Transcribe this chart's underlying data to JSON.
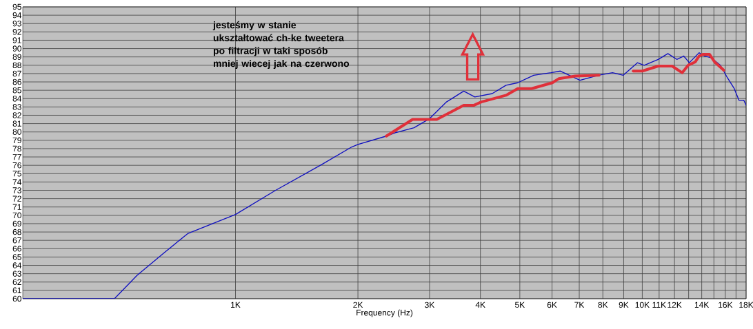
{
  "chart_data": {
    "type": "line",
    "xlabel": "Frequency (Hz)",
    "annotations": [
      "jesteśmy w stanie ukształtować ch-ke tweetera po filtracji w taki sposób mniej wiecej jak na czerwono"
    ],
    "series": [
      {
        "color": "#1010c0",
        "x": [
          300,
          504,
          573,
          671,
          763,
          1000,
          1255,
          1631,
          1931,
          2000,
          2348,
          2470,
          2747,
          3000,
          3302,
          3640,
          3877,
          4276,
          4624,
          4940,
          5408,
          5964,
          6290,
          7031,
          7800,
          8450,
          8980,
          9727,
          10110,
          10940,
          11560,
          12160,
          12650,
          13050,
          13790,
          14220,
          14780,
          15560,
          16190,
          16830,
          17290,
          17770,
          18000
        ],
        "values": [
          60,
          60,
          62.8,
          65.6,
          67.8,
          70.1,
          73.0,
          76.1,
          78.2,
          78.5,
          79.5,
          79.9,
          80.5,
          81.6,
          83.6,
          84.9,
          84.2,
          84.6,
          85.6,
          85.9,
          86.8,
          87.1,
          87.3,
          86.2,
          86.8,
          87.1,
          86.8,
          88.3,
          88.0,
          88.7,
          89.4,
          88.7,
          89.1,
          88.3,
          89.5,
          89.1,
          88.9,
          88.0,
          86.5,
          85.2,
          83.8,
          83.8,
          83.2
        ]
      },
      {
        "color": "#e0303a",
        "x": [
          2348,
          2725,
          3125,
          3640,
          3860,
          4020,
          4624,
          4940,
          5344,
          6010,
          6240,
          6840,
          7830,
          8700,
          9500,
          10000,
          10940,
          11840,
          12530,
          12970,
          13500,
          13790,
          14080,
          14640,
          15060,
          15860
        ],
        "values": [
          79.5,
          81.5,
          81.5,
          83.2,
          83.2,
          83.6,
          84.4,
          85.2,
          85.2,
          85.9,
          86.4,
          86.7,
          86.8,
          null,
          87.3,
          87.3,
          87.9,
          87.9,
          87.1,
          88.0,
          88.4,
          89.1,
          89.3,
          89.3,
          88.4,
          87.4
        ]
      }
    ],
    "log": "x",
    "grid": true,
    "xlim": [
      300,
      18000
    ],
    "ylim": [
      60,
      95
    ],
    "xticks": [
      {
        "value": 1000,
        "label": "1K"
      },
      {
        "value": 2000,
        "label": "2K"
      },
      {
        "value": 3000,
        "label": "3K"
      },
      {
        "value": 4000,
        "label": "4K"
      },
      {
        "value": 5000,
        "label": "5K"
      },
      {
        "value": 6000,
        "label": "6K"
      },
      {
        "value": 7000,
        "label": "7K"
      },
      {
        "value": 8000,
        "label": "8K"
      },
      {
        "value": 9000,
        "label": "9K"
      },
      {
        "value": 10000,
        "label": "10K"
      },
      {
        "value": 11000,
        "label": "11K"
      },
      {
        "value": 12000,
        "label": "12K"
      },
      {
        "value": 13000,
        "label": null
      },
      {
        "value": 14000,
        "label": "14K"
      },
      {
        "value": 15000,
        "label": null
      },
      {
        "value": 16000,
        "label": "16K"
      },
      {
        "value": 17000,
        "label": null
      },
      {
        "value": 18000,
        "label": "18K"
      }
    ],
    "yticks": [
      60,
      61,
      62,
      63,
      64,
      65,
      66,
      67,
      68,
      69,
      70,
      71,
      72,
      73,
      74,
      75,
      76,
      77,
      78,
      79,
      80,
      81,
      82,
      83,
      84,
      85,
      86,
      87,
      88,
      89,
      90,
      91,
      92,
      93,
      94,
      95
    ]
  }
}
